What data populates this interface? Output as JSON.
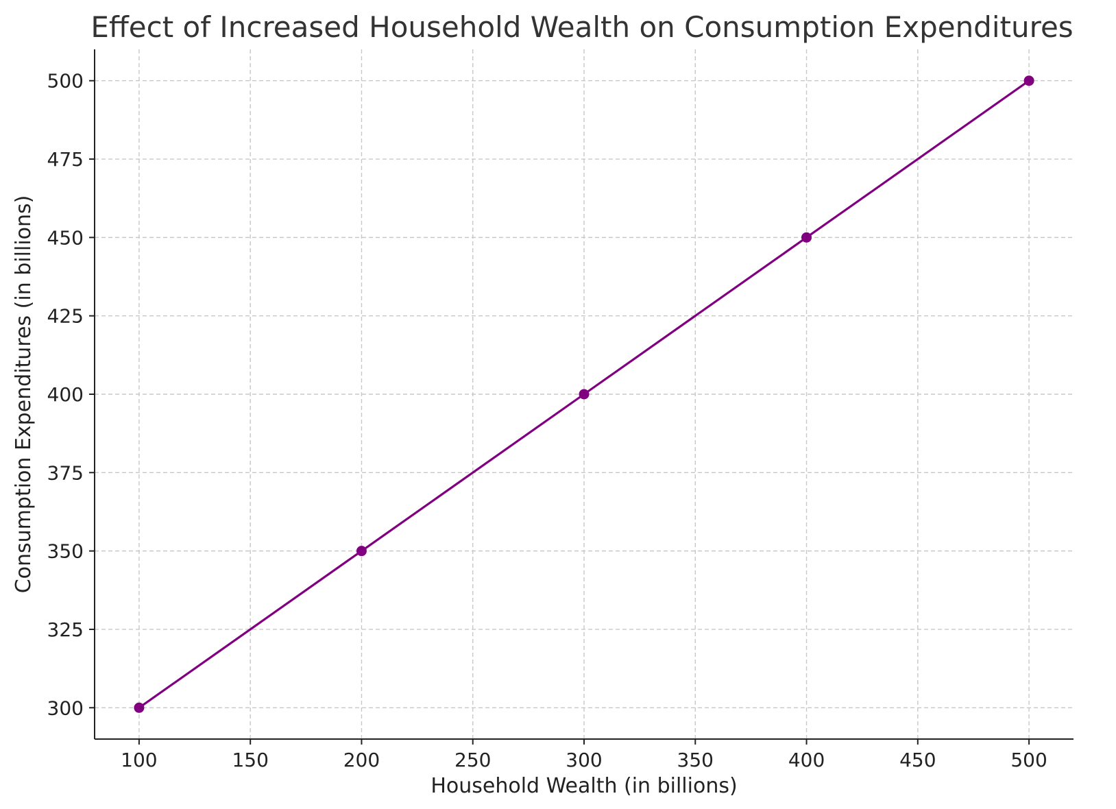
{
  "chart_data": {
    "type": "line",
    "title": "Effect of Increased Household Wealth on Consumption Expenditures",
    "xlabel": "Household Wealth (in billions)",
    "ylabel": "Consumption Expenditures (in billions)",
    "xlim": [
      80,
      520
    ],
    "ylim": [
      290,
      510
    ],
    "xticks": [
      100,
      150,
      200,
      250,
      300,
      350,
      400,
      450,
      500
    ],
    "yticks": [
      300,
      325,
      350,
      375,
      400,
      425,
      450,
      475,
      500
    ],
    "grid": true,
    "series": [
      {
        "color": "#800080",
        "marker": "circle",
        "x": [
          100,
          200,
          300,
          400,
          500
        ],
        "y": [
          300,
          350,
          400,
          450,
          500
        ]
      }
    ]
  }
}
